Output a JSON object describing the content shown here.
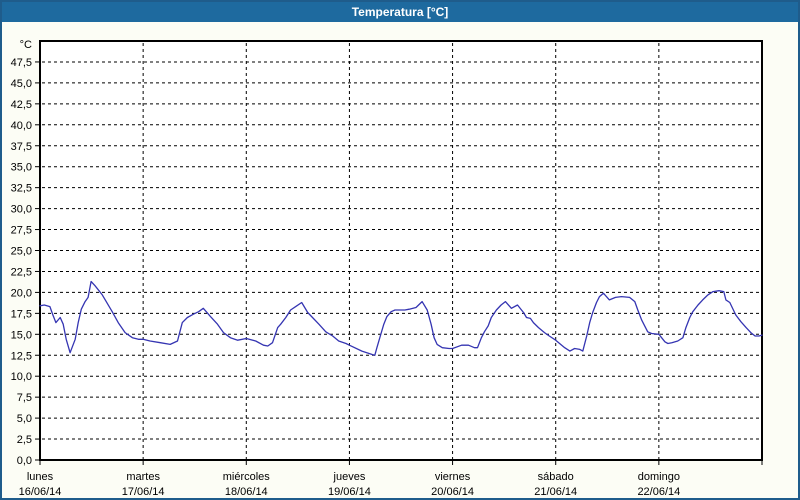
{
  "window": {
    "title": "Temperatura [°C]"
  },
  "chart_data": {
    "type": "line",
    "title": "Temperatura [°C]",
    "unit_label": "°C",
    "ylabel": "°C",
    "ylim": [
      0,
      50
    ],
    "grid": "dashed",
    "legend": "none",
    "y_ticks": [
      0,
      2.5,
      5,
      7.5,
      10,
      12.5,
      15,
      17.5,
      20,
      22.5,
      25,
      27.5,
      30,
      32.5,
      35,
      37.5,
      40,
      42.5,
      45,
      47.5
    ],
    "y_tick_labels": [
      "0,0",
      "2,5",
      "5,0",
      "7,5",
      "10,0",
      "12,5",
      "15,0",
      "17,5",
      "20,0",
      "22,5",
      "25,0",
      "27,5",
      "30,0",
      "32,5",
      "35,0",
      "37,5",
      "40,0",
      "42,5",
      "45,0",
      "47,5"
    ],
    "x_days": [
      {
        "name": "lunes",
        "date": "16/06/14"
      },
      {
        "name": "martes",
        "date": "17/06/14"
      },
      {
        "name": "miércoles",
        "date": "18/06/14"
      },
      {
        "name": "jueves",
        "date": "19/06/14"
      },
      {
        "name": "viernes",
        "date": "20/06/14"
      },
      {
        "name": "sábado",
        "date": "21/06/14"
      },
      {
        "name": "domingo",
        "date": "22/06/14"
      }
    ],
    "series": [
      {
        "name": "Temperatura",
        "color": "#3535b2",
        "points_hours_temp": [
          [
            0,
            18.4
          ],
          [
            1,
            18.5
          ],
          [
            2.3,
            18.3
          ],
          [
            3,
            17.3
          ],
          [
            3.7,
            16.4
          ],
          [
            4.7,
            17.0
          ],
          [
            5.4,
            16.2
          ],
          [
            6.1,
            14.4
          ],
          [
            7,
            12.8
          ],
          [
            8.2,
            14.4
          ],
          [
            8.9,
            16.4
          ],
          [
            9.6,
            18.0
          ],
          [
            10.5,
            18.9
          ],
          [
            11.2,
            19.4
          ],
          [
            11.9,
            21.3
          ],
          [
            12.8,
            20.8
          ],
          [
            14.5,
            19.7
          ],
          [
            16.8,
            17.7
          ],
          [
            18.2,
            16.4
          ],
          [
            19.8,
            15.2
          ],
          [
            21.5,
            14.6
          ],
          [
            22.9,
            14.4
          ],
          [
            24,
            14.4
          ],
          [
            25.6,
            14.2
          ],
          [
            28,
            14.0
          ],
          [
            30.3,
            13.8
          ],
          [
            32,
            14.2
          ],
          [
            33.1,
            16.4
          ],
          [
            34.3,
            17.0
          ],
          [
            35.7,
            17.4
          ],
          [
            36.9,
            17.7
          ],
          [
            38,
            18.1
          ],
          [
            39.7,
            17.1
          ],
          [
            41.3,
            16.2
          ],
          [
            42.7,
            15.2
          ],
          [
            44.3,
            14.6
          ],
          [
            46,
            14.3
          ],
          [
            48,
            14.5
          ],
          [
            50.2,
            14.2
          ],
          [
            52,
            13.7
          ],
          [
            53,
            13.6
          ],
          [
            54.1,
            14.0
          ],
          [
            55.3,
            15.8
          ],
          [
            56,
            16.2
          ],
          [
            57.2,
            17.0
          ],
          [
            58.3,
            17.9
          ],
          [
            59.5,
            18.3
          ],
          [
            60.9,
            18.8
          ],
          [
            62.3,
            17.6
          ],
          [
            63.4,
            17.0
          ],
          [
            64.9,
            16.2
          ],
          [
            66.5,
            15.3
          ],
          [
            68.1,
            14.8
          ],
          [
            69.5,
            14.2
          ],
          [
            71.2,
            13.9
          ],
          [
            72,
            13.7
          ],
          [
            74.9,
            13.0
          ],
          [
            77.2,
            12.6
          ],
          [
            77.9,
            12.5
          ],
          [
            78.4,
            13.4
          ],
          [
            79.3,
            15.0
          ],
          [
            80,
            16.2
          ],
          [
            80.7,
            17.1
          ],
          [
            81.7,
            17.7
          ],
          [
            82.6,
            17.9
          ],
          [
            84.9,
            17.9
          ],
          [
            85.9,
            18.0
          ],
          [
            87.5,
            18.2
          ],
          [
            88.9,
            18.9
          ],
          [
            90.1,
            17.9
          ],
          [
            91,
            16.2
          ],
          [
            91.7,
            14.6
          ],
          [
            92.4,
            13.8
          ],
          [
            93.6,
            13.4
          ],
          [
            95.2,
            13.3
          ],
          [
            96,
            13.3
          ],
          [
            98.1,
            13.7
          ],
          [
            99.7,
            13.7
          ],
          [
            101.1,
            13.4
          ],
          [
            101.8,
            13.4
          ],
          [
            102.7,
            14.6
          ],
          [
            103.4,
            15.3
          ],
          [
            104.3,
            16.0
          ],
          [
            105,
            17.0
          ],
          [
            106.2,
            17.9
          ],
          [
            107.3,
            18.5
          ],
          [
            108.3,
            18.9
          ],
          [
            109.7,
            18.1
          ],
          [
            111.1,
            18.5
          ],
          [
            112.5,
            17.6
          ],
          [
            113.2,
            17.0
          ],
          [
            114.1,
            16.9
          ],
          [
            114.8,
            16.4
          ],
          [
            116,
            15.8
          ],
          [
            117.4,
            15.2
          ],
          [
            118.5,
            14.8
          ],
          [
            120,
            14.3
          ],
          [
            122.1,
            13.4
          ],
          [
            123.3,
            13.0
          ],
          [
            124.4,
            13.3
          ],
          [
            125.6,
            13.2
          ],
          [
            126.3,
            13.0
          ],
          [
            127.2,
            14.8
          ],
          [
            127.9,
            16.4
          ],
          [
            128.6,
            17.6
          ],
          [
            129.5,
            18.8
          ],
          [
            130.2,
            19.5
          ],
          [
            131.1,
            19.9
          ],
          [
            132.5,
            19.1
          ],
          [
            133.9,
            19.4
          ],
          [
            135.3,
            19.5
          ],
          [
            137.2,
            19.4
          ],
          [
            138.4,
            18.9
          ],
          [
            139.1,
            17.9
          ],
          [
            140,
            16.7
          ],
          [
            140.7,
            16.0
          ],
          [
            141.4,
            15.3
          ],
          [
            142.3,
            15.1
          ],
          [
            144,
            15.0
          ],
          [
            145.4,
            14.1
          ],
          [
            146.1,
            13.9
          ],
          [
            147,
            14.0
          ],
          [
            148.4,
            14.2
          ],
          [
            149.6,
            14.6
          ],
          [
            150.3,
            15.8
          ],
          [
            151.2,
            17.0
          ],
          [
            151.9,
            17.7
          ],
          [
            153.1,
            18.5
          ],
          [
            154.2,
            19.1
          ],
          [
            155.4,
            19.7
          ],
          [
            156.6,
            20.1
          ],
          [
            158,
            20.2
          ],
          [
            159.1,
            20.1
          ],
          [
            159.6,
            19.1
          ],
          [
            160.5,
            18.8
          ],
          [
            161.9,
            17.3
          ],
          [
            163.1,
            16.5
          ],
          [
            164.3,
            15.8
          ],
          [
            165.4,
            15.2
          ],
          [
            166.4,
            14.8
          ],
          [
            167.3,
            14.8
          ],
          [
            168,
            14.9
          ]
        ]
      }
    ],
    "colors": {
      "titlebar": "#1e6a9f",
      "window_border": "#1f5c8b",
      "window_background": "#fcfdf5",
      "plot_background": "#ffffff",
      "grid": "#000000",
      "line": "#3535b2",
      "text": "#000000"
    }
  }
}
